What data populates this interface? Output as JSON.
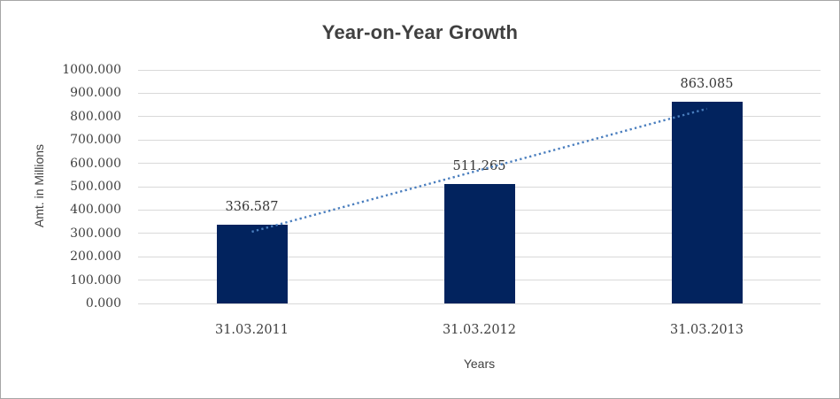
{
  "chart_data": {
    "type": "bar",
    "title": "Year-on-Year Growth",
    "categories": [
      "31.03.2011",
      "31.03.2012",
      "31.03.2013"
    ],
    "values": [
      336.587,
      511.265,
      863.085
    ],
    "data_labels": [
      "336.587",
      "511.265",
      "863.085"
    ],
    "xlabel": "Years",
    "ylabel": "Amt. in Millions",
    "ylim": [
      0,
      1000
    ],
    "ytick_step": 100,
    "ytick_decimals": 3,
    "ytick_labels": [
      "0.000",
      "100.000",
      "200.000",
      "300.000",
      "400.000",
      "500.000",
      "600.000",
      "700.000",
      "800.000",
      "900.000",
      "1000.000"
    ],
    "grid": "horizontal",
    "legend": "none",
    "trendline": {
      "type": "linear",
      "style": "dotted"
    },
    "colors": {
      "bar": "#02235e",
      "trendline": "#4a7ebe",
      "gridline": "#d9d9d9",
      "axis_text": "#404040",
      "title_text": "#404040",
      "frame_border": "#a6a6a6",
      "background": "#ffffff"
    }
  }
}
